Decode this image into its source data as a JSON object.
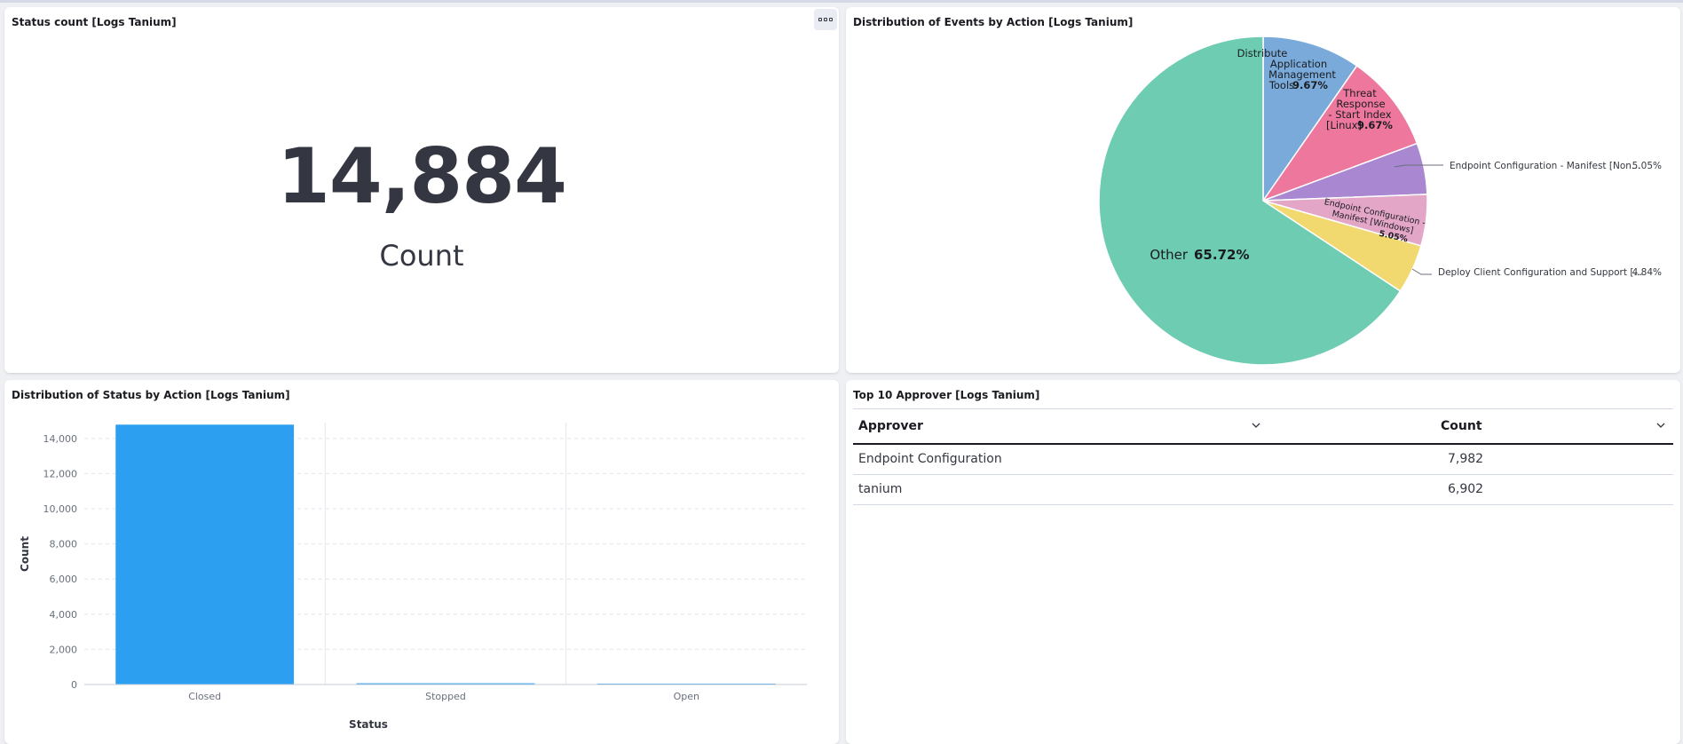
{
  "metric_panel": {
    "title": "Status count [Logs Tanium]",
    "value": "14,884",
    "label": "Count",
    "options_icon": "ellipsis-icon"
  },
  "pie_panel": {
    "title": "Distribution of Events by Action [Logs Tanium]"
  },
  "bar_panel": {
    "title": "Distribution of Status by Action [Logs Tanium]"
  },
  "table_panel": {
    "title": "Top 10 Approver [Logs Tanium]",
    "columns": [
      "Approver",
      "Count"
    ],
    "rows": [
      {
        "approver": "Endpoint Configuration",
        "count": "7,982"
      },
      {
        "approver": "tanium",
        "count": "6,902"
      }
    ],
    "sort_icon": "chevron-down-icon"
  },
  "chart_data": [
    {
      "type": "pie",
      "slices": [
        {
          "label": "Distribute Application Management Tools",
          "percent": 9.67,
          "pct_label": "9.67%",
          "color": "#79aad9"
        },
        {
          "label": "Threat Response - Start Index [Linux]",
          "percent": 9.67,
          "pct_label": "9.67%",
          "color": "#ee789d"
        },
        {
          "label": "Endpoint Configuration - Manifest [Non...",
          "percent": 5.05,
          "pct_label": "5.05%",
          "color": "#a987d1"
        },
        {
          "label": "Endpoint Configuration - Manifest [Windows]",
          "percent": 5.05,
          "pct_label": "5.05%",
          "color": "#e4a6c7"
        },
        {
          "label": "Deploy Client Configuration and Support [...",
          "percent": 4.84,
          "pct_label": "4.84%",
          "color": "#f1d86f"
        },
        {
          "label": "Other",
          "percent": 65.72,
          "pct_label": "65.72%",
          "color": "#6dccb1"
        }
      ],
      "inner_labels": {
        "s0": [
          "Distribute",
          "Application",
          "Management",
          "Tools"
        ],
        "s1": [
          "Threat",
          "Response",
          "- Start Index",
          "[Linux]"
        ],
        "s3": [
          "Endpoint Configuration -",
          "Manifest [Windows]"
        ]
      }
    },
    {
      "type": "bar",
      "categories": [
        "Closed",
        "Stopped",
        "Open"
      ],
      "values": [
        14784,
        70,
        30
      ],
      "xlabel": "Status",
      "ylabel": "Count",
      "yticks": [
        0,
        2000,
        4000,
        6000,
        8000,
        10000,
        12000,
        14000
      ],
      "ytick_labels": [
        "0",
        "2,000",
        "4,000",
        "6,000",
        "8,000",
        "10,000",
        "12,000",
        "14,000"
      ],
      "ylim": [
        0,
        14900
      ],
      "color": "#2c9ff0"
    }
  ]
}
